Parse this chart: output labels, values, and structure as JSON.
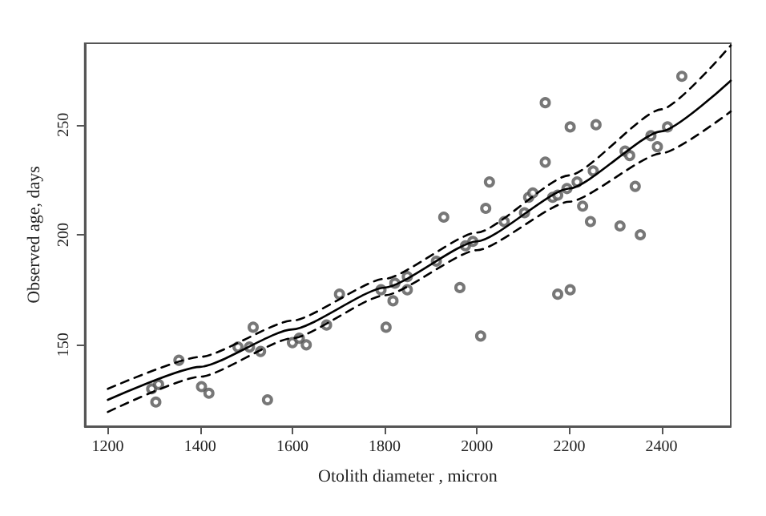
{
  "chart_data": {
    "type": "scatter",
    "xlabel": "Otolith diameter , micron",
    "ylabel": "Observed age, days",
    "xlim": [
      1150,
      2550
    ],
    "xticks": [
      1200,
      1400,
      1600,
      1800,
      2000,
      2200,
      2400
    ],
    "ylim": [
      113,
      287
    ],
    "yticks": [
      150,
      200,
      250
    ],
    "grid": false,
    "series": [
      {
        "marker": "circle",
        "color": "#555555",
        "x": [
          1295,
          1304,
          1310,
          1354,
          1403,
          1419,
          1482,
          1507,
          1515,
          1531,
          1546,
          1600,
          1615,
          1630,
          1674,
          1702,
          1792,
          1803,
          1818,
          1822,
          1849,
          1849,
          1912,
          1928,
          1963,
          1975,
          1991,
          2008,
          2019,
          2027,
          2059,
          2103,
          2112,
          2121,
          2148,
          2148,
          2164,
          2175,
          2175,
          2195,
          2202,
          2202,
          2217,
          2229,
          2246,
          2252,
          2258,
          2310,
          2321,
          2331,
          2343,
          2354,
          2377,
          2391,
          2413,
          2444
        ],
        "values": [
          130,
          124,
          132,
          143,
          131,
          128,
          149,
          149,
          158,
          147,
          125,
          151,
          153,
          150,
          159,
          173,
          175,
          158,
          170,
          178,
          181,
          175,
          188,
          208,
          176,
          195,
          197,
          154,
          212,
          224,
          206,
          210,
          217,
          219,
          260,
          233,
          217,
          218,
          173,
          221,
          175,
          249,
          224,
          213,
          206,
          229,
          250,
          204,
          238,
          236,
          222,
          200,
          245,
          240,
          249,
          272
        ]
      },
      {
        "type": "line",
        "marker": "none",
        "line_style": "solid",
        "color": "#000000",
        "x": [
          1200,
          1400,
          1600,
          1800,
          2000,
          2200,
          2400,
          2550
        ],
        "values": [
          125,
          140,
          157,
          176,
          197,
          221,
          247,
          270
        ]
      },
      {
        "type": "line",
        "marker": "none",
        "line_style": "dashed",
        "color": "#000000",
        "x": [
          1200,
          1400,
          1600,
          1800,
          2000,
          2200,
          2400,
          2550
        ],
        "values": [
          130,
          144.5,
          161,
          180,
          201,
          227,
          257,
          286
        ]
      },
      {
        "type": "line",
        "marker": "none",
        "line_style": "dashed",
        "color": "#000000",
        "x": [
          1200,
          1400,
          1600,
          1800,
          2000,
          2200,
          2400,
          2550
        ],
        "values": [
          119.5,
          135.5,
          153,
          172.5,
          193,
          215,
          237,
          256
        ]
      }
    ]
  }
}
